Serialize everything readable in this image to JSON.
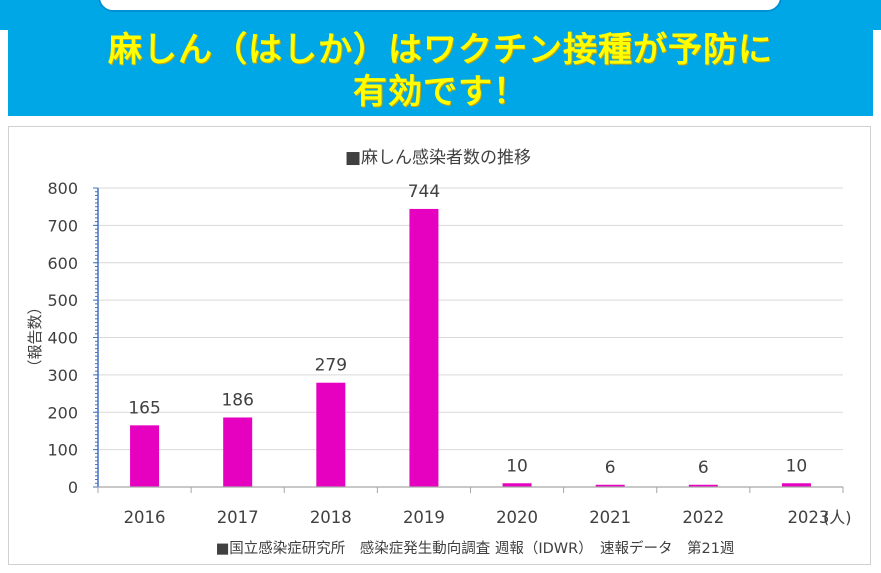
{
  "banner": {
    "line1": "麻しん（はしか）はワクチン接種が予防に",
    "line2": "有効です！"
  },
  "colors": {
    "banner_bg": "#00a7e6",
    "banner_text": "#ffff00",
    "bar": "#e600c0"
  },
  "chart_data": {
    "type": "bar",
    "title": "■麻しん感染者数の推移",
    "categories": [
      "2016",
      "2017",
      "2018",
      "2019",
      "2020",
      "2021",
      "2022",
      "2023"
    ],
    "values": [
      165,
      186,
      279,
      744,
      10,
      6,
      6,
      10
    ],
    "data_labels": [
      "165",
      "186",
      "279",
      "744",
      "10",
      "6",
      "6",
      "10"
    ],
    "xlabel": "",
    "x_unit": "(人)",
    "ylabel": "（報告数）",
    "ylim": [
      0,
      800
    ],
    "yticks": [
      0,
      100,
      200,
      300,
      400,
      500,
      600,
      700,
      800
    ],
    "ytick_labels": [
      "0",
      "100",
      "200",
      "300",
      "400",
      "500",
      "600",
      "700",
      "800"
    ],
    "grid": true,
    "legend": "■国立感染症研究所　感染症発生動向調査 週報（IDWR）　速報データ　第21週",
    "legend_position": "bottom"
  }
}
